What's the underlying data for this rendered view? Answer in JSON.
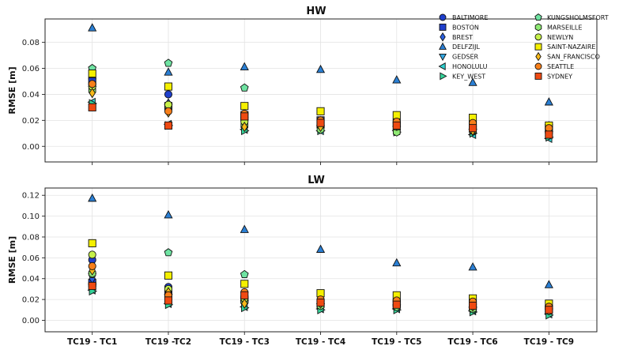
{
  "chart_data": [
    {
      "type": "scatter",
      "title": "HW",
      "ylabel": "RMSE [m]",
      "xlabel": "",
      "categories": [
        "TC19 - TC1",
        "TC19 -TC2",
        "TC19 - TC3",
        "TC19 - TC4",
        "TC19 - TC5",
        "TC19 - TC6",
        "TC19 - TC9"
      ],
      "ylim": [
        -0.012,
        0.098
      ],
      "yticks": [
        0.0,
        0.02,
        0.04,
        0.06,
        0.08
      ],
      "ytick_labels": [
        "0.00",
        "0.02",
        "0.04",
        "0.06",
        "0.08"
      ],
      "grid": true,
      "legend": "top-right",
      "series": [
        {
          "name": "BALTIMORE",
          "marker": "circle",
          "color": "#1f3fcc",
          "values": [
            0.052,
            0.04,
            0.022,
            0.018,
            0.018,
            0.015,
            0.012
          ]
        },
        {
          "name": "BOSTON",
          "marker": "square",
          "color": "#1f3fcc",
          "values": [
            0.05,
            0.031,
            0.024,
            0.02,
            0.018,
            0.016,
            0.013
          ]
        },
        {
          "name": "BREST",
          "marker": "diamond",
          "color": "#2a5fe0",
          "values": [
            0.047,
            0.033,
            0.023,
            0.019,
            0.017,
            0.014,
            0.011
          ]
        },
        {
          "name": "DELFZIJL",
          "marker": "triangle-up",
          "color": "#2a7fd4",
          "values": [
            0.091,
            0.057,
            0.061,
            0.059,
            0.051,
            0.049,
            0.034
          ]
        },
        {
          "name": "GEDSER",
          "marker": "triangle-down",
          "color": "#33a6e0",
          "values": [
            0.044,
            0.03,
            0.018,
            0.014,
            0.013,
            0.011,
            0.009
          ]
        },
        {
          "name": "HONOLULU",
          "marker": "triangle-left",
          "color": "#2ed1d1",
          "values": [
            0.034,
            0.017,
            0.013,
            0.012,
            0.012,
            0.009,
            0.006
          ]
        },
        {
          "name": "KEY_WEST",
          "marker": "triangle-right",
          "color": "#35d49a",
          "values": [
            0.033,
            0.016,
            0.012,
            0.012,
            0.011,
            0.01,
            0.007
          ]
        },
        {
          "name": "KUNGSHOLMSFORT",
          "marker": "pentagon",
          "color": "#6fe3a2",
          "values": [
            0.06,
            0.064,
            0.045,
            0.014,
            0.012,
            0.012,
            0.016
          ]
        },
        {
          "name": "MARSEILLE",
          "marker": "hexagon",
          "color": "#8fea74",
          "values": [
            0.043,
            0.031,
            0.016,
            0.013,
            0.011,
            0.012,
            0.011
          ]
        },
        {
          "name": "NEWLYN",
          "marker": "circle",
          "color": "#c6f04a",
          "values": [
            0.046,
            0.032,
            0.019,
            0.016,
            0.015,
            0.013,
            0.016
          ]
        },
        {
          "name": "SAINT-NAZAIRE",
          "marker": "square",
          "color": "#f5f000",
          "values": [
            0.056,
            0.046,
            0.031,
            0.027,
            0.024,
            0.022,
            0.016
          ]
        },
        {
          "name": "SAN_FRANCISCO",
          "marker": "diamond",
          "color": "#f7b91a",
          "values": [
            0.041,
            0.026,
            0.015,
            0.015,
            0.016,
            0.012,
            0.013
          ]
        },
        {
          "name": "SEATTLE",
          "marker": "circle",
          "color": "#f77f1a",
          "values": [
            0.048,
            0.027,
            0.025,
            0.02,
            0.019,
            0.018,
            0.014
          ]
        },
        {
          "name": "SYDNEY",
          "marker": "square",
          "color": "#ef4a12",
          "values": [
            0.03,
            0.016,
            0.023,
            0.018,
            0.016,
            0.014,
            0.009
          ]
        }
      ]
    },
    {
      "type": "scatter",
      "title": "LW",
      "ylabel": "RMSE [m]",
      "xlabel": "",
      "categories": [
        "TC19 - TC1",
        "TC19 -TC2",
        "TC19 - TC3",
        "TC19 - TC4",
        "TC19 - TC5",
        "TC19 - TC6",
        "TC19 - TC9"
      ],
      "ylim": [
        -0.011,
        0.127
      ],
      "yticks": [
        0.0,
        0.02,
        0.04,
        0.06,
        0.08,
        0.1,
        0.12
      ],
      "ytick_labels": [
        "0.00",
        "0.02",
        "0.04",
        "0.06",
        "0.08",
        "0.10",
        "0.12"
      ],
      "grid": true,
      "legend": "",
      "series": [
        {
          "name": "BALTIMORE",
          "marker": "circle",
          "color": "#1f3fcc",
          "values": [
            0.058,
            0.032,
            0.022,
            0.018,
            0.02,
            0.015,
            0.012
          ]
        },
        {
          "name": "BOSTON",
          "marker": "square",
          "color": "#1f3fcc",
          "values": [
            0.036,
            0.025,
            0.02,
            0.016,
            0.016,
            0.013,
            0.011
          ]
        },
        {
          "name": "BREST",
          "marker": "diamond",
          "color": "#2a5fe0",
          "values": [
            0.04,
            0.028,
            0.021,
            0.017,
            0.017,
            0.014,
            0.01
          ]
        },
        {
          "name": "DELFZIJL",
          "marker": "triangle-up",
          "color": "#2a7fd4",
          "values": [
            0.117,
            0.101,
            0.087,
            0.068,
            0.055,
            0.051,
            0.034
          ]
        },
        {
          "name": "GEDSER",
          "marker": "triangle-down",
          "color": "#33a6e0",
          "values": [
            0.032,
            0.022,
            0.016,
            0.013,
            0.012,
            0.01,
            0.008
          ]
        },
        {
          "name": "HONOLULU",
          "marker": "triangle-left",
          "color": "#2ed1d1",
          "values": [
            0.029,
            0.016,
            0.013,
            0.011,
            0.011,
            0.009,
            0.006
          ]
        },
        {
          "name": "KEY_WEST",
          "marker": "triangle-right",
          "color": "#35d49a",
          "values": [
            0.028,
            0.015,
            0.012,
            0.01,
            0.01,
            0.008,
            0.005
          ]
        },
        {
          "name": "KUNGSHOLMSFORT",
          "marker": "pentagon",
          "color": "#6fe3a2",
          "values": [
            0.044,
            0.065,
            0.044,
            0.015,
            0.013,
            0.011,
            0.012
          ]
        },
        {
          "name": "MARSEILLE",
          "marker": "hexagon",
          "color": "#8fea74",
          "values": [
            0.045,
            0.021,
            0.018,
            0.014,
            0.013,
            0.011,
            0.009
          ]
        },
        {
          "name": "NEWLYN",
          "marker": "circle",
          "color": "#c6f04a",
          "values": [
            0.063,
            0.03,
            0.021,
            0.019,
            0.018,
            0.016,
            0.013
          ]
        },
        {
          "name": "SAINT-NAZAIRE",
          "marker": "square",
          "color": "#f5f000",
          "values": [
            0.074,
            0.043,
            0.035,
            0.026,
            0.024,
            0.021,
            0.016
          ]
        },
        {
          "name": "SAN_FRANCISCO",
          "marker": "diamond",
          "color": "#f7b91a",
          "values": [
            0.048,
            0.027,
            0.016,
            0.016,
            0.017,
            0.013,
            0.012
          ]
        },
        {
          "name": "SEATTLE",
          "marker": "circle",
          "color": "#f77f1a",
          "values": [
            0.052,
            0.024,
            0.027,
            0.02,
            0.019,
            0.018,
            0.013
          ]
        },
        {
          "name": "SYDNEY",
          "marker": "square",
          "color": "#ef4a12",
          "values": [
            0.033,
            0.019,
            0.024,
            0.017,
            0.015,
            0.014,
            0.01
          ]
        }
      ]
    }
  ]
}
